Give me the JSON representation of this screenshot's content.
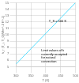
{
  "chart_data": {
    "type": "line",
    "title": "",
    "xlabel": "T (K)",
    "ylabel": "h_r (T_i, T_0)(Wm^-2 K^-1)",
    "x": [
      300,
      500
    ],
    "values": [
      5.4,
      15.0
    ],
    "color": "#55ddff",
    "xlim": [
      300,
      500
    ],
    "ylim": [
      5,
      15
    ],
    "xticks": [
      300,
      350,
      400,
      450,
      500
    ],
    "yticks": [
      5,
      6,
      7,
      8,
      9,
      10,
      11,
      12,
      13,
      14,
      15
    ],
    "grid": true,
    "annotations": [
      {
        "text": "T_S = 500 K",
        "x": 410,
        "y": 12.0
      },
      {
        "text": "Limit values of h\ncurrently accepted\nfor natural\nconvection",
        "x": 385,
        "y": 7.8
      }
    ]
  }
}
